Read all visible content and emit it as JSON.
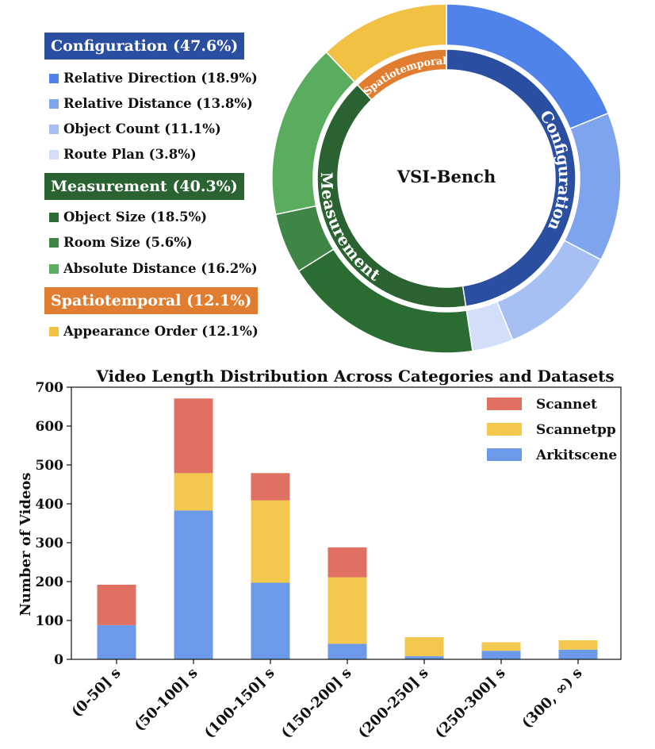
{
  "chart_data": [
    {
      "type": "pie",
      "center_label": "VSI-Bench",
      "categories": [
        {
          "name": "Configuration",
          "header": "Configuration (47.6%)",
          "percent": 47.6,
          "color": "#2a4ea0",
          "items": [
            {
              "label": "Relative Direction (18.9%)",
              "percent": 18.9,
              "color": "#4f83ea"
            },
            {
              "label": "Relative Distance (13.8%)",
              "percent": 13.8,
              "color": "#7fa4ee"
            },
            {
              "label": "Object Count (11.1%)",
              "percent": 11.1,
              "color": "#a6c0f4"
            },
            {
              "label": "Route Plan (3.8%)",
              "percent": 3.8,
              "color": "#d3dff8"
            }
          ]
        },
        {
          "name": "Measurement",
          "header": "Measurement (40.3%)",
          "percent": 40.3,
          "color": "#2b6232",
          "items": [
            {
              "label": "Object Size (18.5%)",
              "percent": 18.5,
              "color": "#2b6c32"
            },
            {
              "label": "Room Size (5.6%)",
              "percent": 5.6,
              "color": "#3f8545"
            },
            {
              "label": "Absolute Distance (16.2%)",
              "percent": 16.2,
              "color": "#5aac5e"
            }
          ]
        },
        {
          "name": "Spatiotemporal",
          "header": "Spatiotemporal (12.1%)",
          "percent": 12.1,
          "color": "#e07d30",
          "items": [
            {
              "label": "Appearance Order (12.1%)",
              "percent": 12.1,
              "color": "#f2c043"
            }
          ]
        }
      ]
    },
    {
      "type": "bar",
      "stacked": true,
      "title": "Video Length Distribution Across Categories and Datasets",
      "xlabel": "",
      "ylabel": "Number of Videos",
      "ylim": [
        0,
        700
      ],
      "yticks": [
        0,
        100,
        200,
        300,
        400,
        500,
        600,
        700
      ],
      "legend_position": "top-right",
      "categories": [
        "(0-50] s",
        "(50-100] s",
        "(100-150] s",
        "(150-200] s",
        "(200-250] s",
        "(250-300] s",
        "(300, ∞) s"
      ],
      "series": [
        {
          "name": "Arkitscene",
          "color": "#6d9ae8",
          "values": [
            88,
            383,
            197,
            40,
            8,
            22,
            25
          ]
        },
        {
          "name": "Scannetpp",
          "color": "#f2c84f",
          "values": [
            0,
            96,
            212,
            171,
            49,
            22,
            24
          ]
        },
        {
          "name": "Scannet",
          "color": "#e07062",
          "values": [
            104,
            192,
            70,
            77,
            0,
            0,
            0
          ]
        }
      ],
      "legend_order": [
        "Scannet",
        "Scannetpp",
        "Arkitscene"
      ]
    }
  ]
}
